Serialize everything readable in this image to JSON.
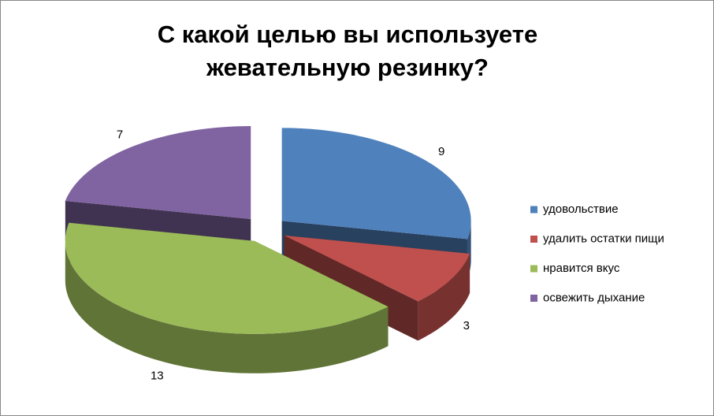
{
  "chart_data": {
    "type": "pie",
    "title": "С какой целью вы используете жевательную резинку?",
    "categories": [
      "удовольствие",
      "удалить остатки пищи",
      "нравится вкус",
      "освежить дыхание"
    ],
    "values": [
      9,
      3,
      13,
      7
    ],
    "colors": [
      "#4f81bd",
      "#c0504d",
      "#9bbb59",
      "#8064a2"
    ],
    "legend": "right"
  }
}
